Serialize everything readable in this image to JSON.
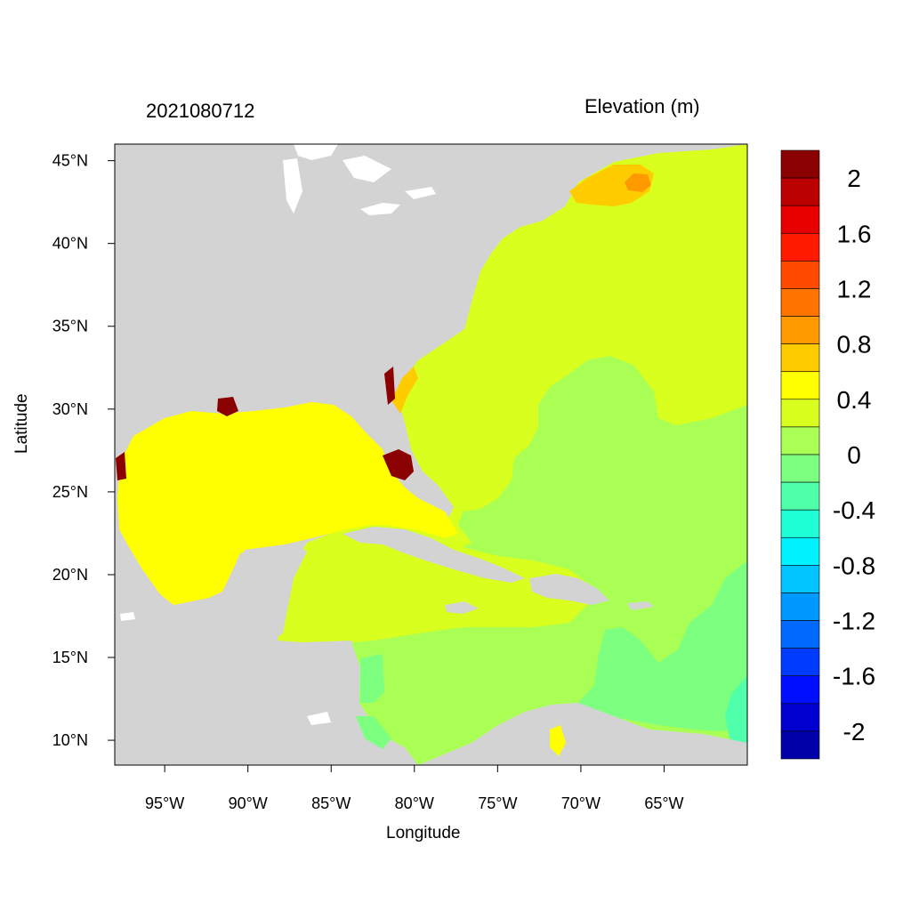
{
  "header": {
    "date_label": "2021080712",
    "variable_label": "Elevation (m)"
  },
  "axes": {
    "xlabel": "Longitude",
    "ylabel": "Latitude",
    "x_ticks": [
      "95°W",
      "90°W",
      "85°W",
      "80°W",
      "75°W",
      "70°W",
      "65°W"
    ],
    "y_ticks": [
      "45°N",
      "40°N",
      "35°N",
      "30°N",
      "25°N",
      "20°N",
      "15°N",
      "10°N"
    ]
  },
  "map": {
    "lon_range": [
      -98,
      -60
    ],
    "lat_range": [
      8.5,
      46
    ],
    "land_color": "#d3d3d3",
    "x_tick_values": [
      -95,
      -90,
      -85,
      -80,
      -75,
      -70,
      -65
    ],
    "y_tick_values": [
      45,
      40,
      35,
      30,
      25,
      20,
      15,
      10
    ]
  },
  "colorbar": {
    "labels": [
      "2",
      "1.6",
      "1.2",
      "0.8",
      "0.4",
      "0",
      "-0.4",
      "-0.8",
      "-1.2",
      "-1.6",
      "-2"
    ],
    "colors": [
      "#8b0000",
      "#bb0000",
      "#e60000",
      "#ff1a00",
      "#ff4a00",
      "#ff7300",
      "#ff9900",
      "#ffcc00",
      "#ffff00",
      "#d9ff1f",
      "#aaff55",
      "#7dff80",
      "#4fffaa",
      "#1fffd6",
      "#00f2ff",
      "#00c3ff",
      "#0099ff",
      "#006aff",
      "#003cff",
      "#000eff",
      "#0000d0",
      "#0000a8"
    ]
  }
}
